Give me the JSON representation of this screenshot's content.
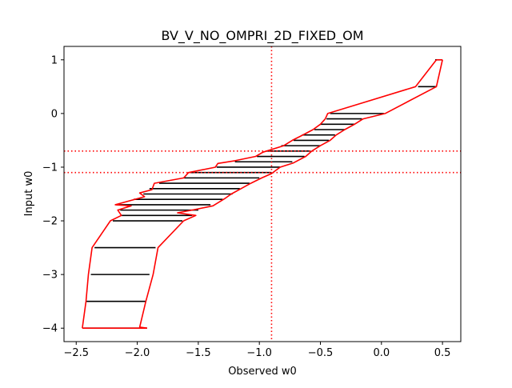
{
  "chart_data": {
    "type": "line",
    "title": "BV_V_NO_OMPRI_2D_FIXED_OM",
    "xlabel": "Observed w0",
    "ylabel": "Input w0",
    "xlim": [
      -2.6,
      0.65
    ],
    "ylim": [
      -4.25,
      1.25
    ],
    "grid": false,
    "x_ticks": [
      -2.5,
      -2.0,
      -1.5,
      -1.0,
      -0.5,
      0.0,
      0.5
    ],
    "x_tick_labels": [
      "−2.5",
      "−2.0",
      "−1.5",
      "−1.0",
      "−0.5",
      "0.0",
      "0.5"
    ],
    "y_ticks": [
      -4,
      -3,
      -2,
      -1,
      0,
      1
    ],
    "y_tick_labels": [
      "−4",
      "−3",
      "−2",
      "−1",
      "0",
      "1"
    ],
    "intervals": {
      "color": "#000000",
      "rows": [
        {
          "y": 1.0,
          "x_low": 0.44,
          "x_high": 0.5
        },
        {
          "y": 0.5,
          "x_low": 0.3,
          "x_high": 0.45
        },
        {
          "y": 0.0,
          "x_low": -0.42,
          "x_high": 0.02
        },
        {
          "y": -0.1,
          "x_low": -0.45,
          "x_high": -0.16
        },
        {
          "y": -0.2,
          "x_low": -0.5,
          "x_high": -0.22
        },
        {
          "y": -0.3,
          "x_low": -0.55,
          "x_high": -0.3
        },
        {
          "y": -0.4,
          "x_low": -0.65,
          "x_high": -0.38
        },
        {
          "y": -0.5,
          "x_low": -0.72,
          "x_high": -0.43
        },
        {
          "y": -0.6,
          "x_low": -0.82,
          "x_high": -0.5
        },
        {
          "y": -0.7,
          "x_low": -0.94,
          "x_high": -0.58
        },
        {
          "y": -0.8,
          "x_low": -1.02,
          "x_high": -0.63
        },
        {
          "y": -0.9,
          "x_low": -1.2,
          "x_high": -0.73
        },
        {
          "y": -1.0,
          "x_low": -1.35,
          "x_high": -0.83
        },
        {
          "y": -1.1,
          "x_low": -1.57,
          "x_high": -0.9
        },
        {
          "y": -1.2,
          "x_low": -1.62,
          "x_high": -1.0
        },
        {
          "y": -1.3,
          "x_low": -1.82,
          "x_high": -1.08
        },
        {
          "y": -1.4,
          "x_low": -1.9,
          "x_high": -1.16
        },
        {
          "y": -1.5,
          "x_low": -1.95,
          "x_high": -1.22
        },
        {
          "y": -1.6,
          "x_low": -2.03,
          "x_high": -1.3
        },
        {
          "y": -1.7,
          "x_low": -2.17,
          "x_high": -1.4
        },
        {
          "y": -1.8,
          "x_low": -2.14,
          "x_high": -1.5
        },
        {
          "y": -1.9,
          "x_low": -2.13,
          "x_high": -1.55
        },
        {
          "y": -2.0,
          "x_low": -2.2,
          "x_high": -1.63
        },
        {
          "y": -2.5,
          "x_low": -2.35,
          "x_high": -1.85
        },
        {
          "y": -3.0,
          "x_low": -2.38,
          "x_high": -1.9
        },
        {
          "y": -3.5,
          "x_low": -2.42,
          "x_high": -1.93
        },
        {
          "y": -4.0,
          "x_low": -2.44,
          "x_high": -1.92
        }
      ]
    },
    "envelope": {
      "color": "#ff0000",
      "left_boundary": [
        [
          -2.45,
          -4.0
        ],
        [
          -2.42,
          -3.5
        ],
        [
          -2.4,
          -3.0
        ],
        [
          -2.37,
          -2.5
        ],
        [
          -2.22,
          -2.0
        ],
        [
          -2.13,
          -1.9
        ],
        [
          -2.16,
          -1.8
        ],
        [
          -2.05,
          -1.72
        ],
        [
          -2.18,
          -1.7
        ],
        [
          -1.94,
          -1.55
        ],
        [
          -1.98,
          -1.48
        ],
        [
          -1.88,
          -1.42
        ],
        [
          -1.86,
          -1.3
        ],
        [
          -1.62,
          -1.2
        ],
        [
          -1.58,
          -1.1
        ],
        [
          -1.36,
          -1.0
        ],
        [
          -1.34,
          -0.93
        ],
        [
          -1.2,
          -0.88
        ],
        [
          -1.03,
          -0.8
        ],
        [
          -0.97,
          -0.72
        ],
        [
          -0.8,
          -0.6
        ],
        [
          -0.73,
          -0.5
        ],
        [
          -0.66,
          -0.42
        ],
        [
          -0.56,
          -0.3
        ],
        [
          -0.5,
          -0.2
        ],
        [
          -0.46,
          -0.1
        ],
        [
          -0.44,
          0.0
        ],
        [
          0.28,
          0.5
        ],
        [
          0.45,
          1.0
        ]
      ],
      "right_boundary": [
        [
          -1.92,
          -4.0
        ],
        [
          -1.98,
          -3.98
        ],
        [
          -1.93,
          -3.5
        ],
        [
          -1.87,
          -3.0
        ],
        [
          -1.83,
          -2.5
        ],
        [
          -1.62,
          -2.0
        ],
        [
          -1.52,
          -1.9
        ],
        [
          -1.67,
          -1.85
        ],
        [
          -1.55,
          -1.8
        ],
        [
          -1.38,
          -1.72
        ],
        [
          -1.28,
          -1.58
        ],
        [
          -1.23,
          -1.5
        ],
        [
          -1.15,
          -1.4
        ],
        [
          -1.07,
          -1.3
        ],
        [
          -0.98,
          -1.2
        ],
        [
          -0.9,
          -1.12
        ],
        [
          -0.83,
          -1.0
        ],
        [
          -0.72,
          -0.92
        ],
        [
          -0.62,
          -0.8
        ],
        [
          -0.57,
          -0.7
        ],
        [
          -0.5,
          -0.6
        ],
        [
          -0.42,
          -0.5
        ],
        [
          -0.37,
          -0.4
        ],
        [
          -0.3,
          -0.3
        ],
        [
          -0.22,
          -0.2
        ],
        [
          -0.15,
          -0.1
        ],
        [
          0.03,
          0.0
        ],
        [
          0.45,
          0.5
        ],
        [
          0.5,
          1.0
        ]
      ]
    },
    "reference_lines": {
      "color": "#ff0000",
      "style": "dotted",
      "vertical_x": [
        -0.9
      ],
      "horizontal_y": [
        -0.7,
        -1.1
      ]
    }
  }
}
